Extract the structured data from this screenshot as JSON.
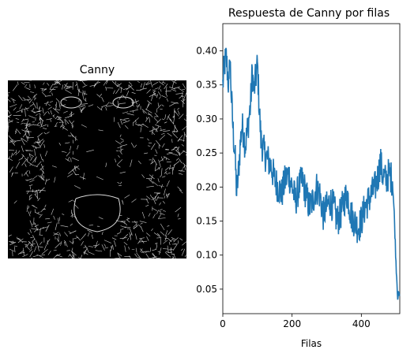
{
  "chart_data": [
    {
      "type": "image",
      "title": "Canny",
      "description": "edge-detected image rendered as white edges on black"
    },
    {
      "type": "line",
      "title": "Respuesta de Canny por filas",
      "xlabel": "Filas",
      "ylabel": "",
      "xlim": [
        0,
        511
      ],
      "ylim": [
        0.014,
        0.44
      ],
      "x_ticks": [
        0,
        200,
        400
      ],
      "x_tick_labels": [
        "0",
        "200",
        "400"
      ],
      "y_ticks": [
        0.05,
        0.1,
        0.15,
        0.2,
        0.25,
        0.3,
        0.35,
        0.4
      ],
      "y_tick_labels": [
        "0.05",
        "0.10",
        "0.15",
        "0.20",
        "0.25",
        "0.30",
        "0.35",
        "0.40"
      ],
      "grid": false,
      "color": "#1f77b4",
      "series": [
        {
          "name": "",
          "x": [
            0,
            5,
            10,
            15,
            18,
            20,
            25,
            30,
            35,
            40,
            45,
            50,
            55,
            60,
            65,
            70,
            75,
            80,
            85,
            90,
            95,
            100,
            105,
            110,
            115,
            120,
            130,
            140,
            150,
            160,
            170,
            180,
            190,
            200,
            210,
            220,
            230,
            240,
            250,
            260,
            270,
            280,
            290,
            300,
            310,
            320,
            330,
            340,
            350,
            360,
            370,
            380,
            390,
            400,
            410,
            420,
            430,
            440,
            450,
            455,
            460,
            470,
            480,
            490,
            495,
            500,
            505,
            510
          ],
          "y": [
            0.35,
            0.38,
            0.39,
            0.36,
            0.34,
            0.4,
            0.33,
            0.28,
            0.25,
            0.19,
            0.22,
            0.26,
            0.29,
            0.28,
            0.26,
            0.28,
            0.3,
            0.32,
            0.37,
            0.34,
            0.36,
            0.38,
            0.32,
            0.27,
            0.26,
            0.25,
            0.24,
            0.23,
            0.21,
            0.2,
            0.19,
            0.21,
            0.22,
            0.2,
            0.18,
            0.2,
            0.21,
            0.19,
            0.17,
            0.18,
            0.2,
            0.19,
            0.16,
            0.17,
            0.18,
            0.17,
            0.15,
            0.16,
            0.18,
            0.19,
            0.16,
            0.15,
            0.14,
            0.15,
            0.17,
            0.18,
            0.19,
            0.2,
            0.22,
            0.24,
            0.22,
            0.21,
            0.22,
            0.21,
            0.16,
            0.09,
            0.04,
            0.04
          ]
        }
      ]
    }
  ]
}
